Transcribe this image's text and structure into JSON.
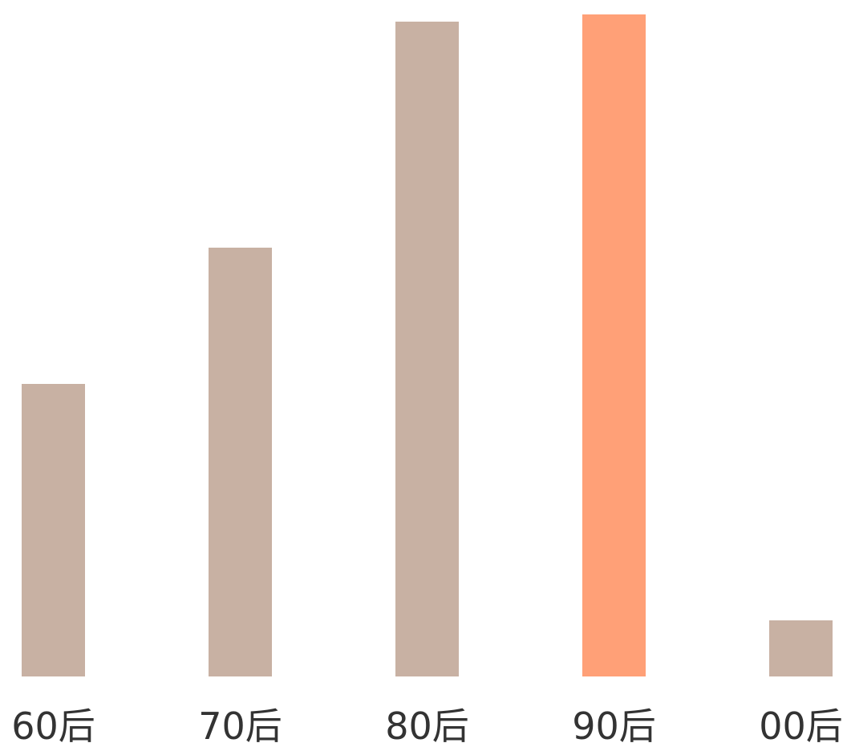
{
  "chart_data": {
    "type": "bar",
    "title": "",
    "xlabel": "",
    "ylabel": "",
    "categories": [
      "60后",
      "70后",
      "80后",
      "90后",
      "00后"
    ],
    "values": [
      365,
      535,
      817,
      826,
      70
    ],
    "ylim": [
      0,
      826
    ],
    "grid": false,
    "legend": "none",
    "colors": {
      "bar": "#C8B1A3",
      "highlight": "#FFA077",
      "label": "#333333",
      "background": "#FFFFFF"
    },
    "highlight_index": 3
  }
}
